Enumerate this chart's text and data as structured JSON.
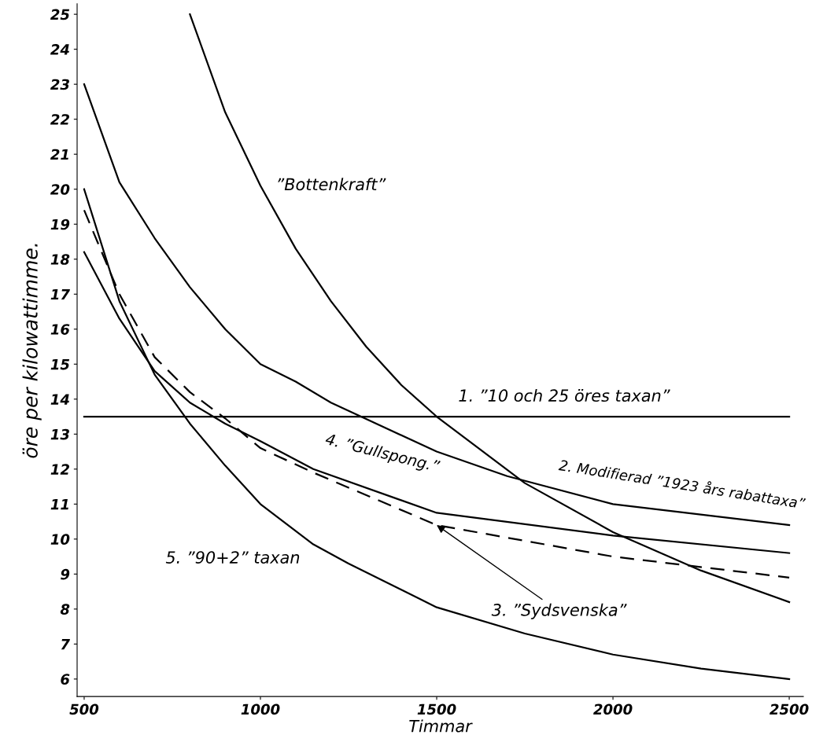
{
  "chart_data": {
    "type": "line",
    "xlabel": "Timmar",
    "ylabel": "öre per kilowattimme.",
    "xlim": [
      480,
      2540
    ],
    "ylim": [
      5.5,
      25.3
    ],
    "xticks": [
      500,
      1000,
      1500,
      2000,
      2500
    ],
    "yticks": [
      6,
      7,
      8,
      9,
      10,
      11,
      12,
      13,
      14,
      15,
      16,
      17,
      18,
      19,
      20,
      21,
      22,
      23,
      24,
      25
    ],
    "grid": false,
    "legend": false,
    "marker": "none",
    "series": [
      {
        "name": "1. ”10 och 25 öres taxan”",
        "color": "#000000",
        "line_style": "solid",
        "x": [
          500,
          2500
        ],
        "values": [
          13.5,
          13.5
        ]
      },
      {
        "name": "2. Modifierad ”1923 års rabattaxa”",
        "color": "#000000",
        "line_style": "solid",
        "x": [
          500,
          600,
          700,
          800,
          900,
          1000,
          1100,
          1200,
          1500,
          1700,
          2000,
          2500
        ],
        "values": [
          23,
          20.2,
          18.6,
          17.2,
          16.0,
          15.0,
          14.5,
          13.9,
          12.5,
          11.8,
          11.0,
          10.4
        ]
      },
      {
        "name": "3. ”Sydsvenska”",
        "color": "#000000",
        "line_style": "dashed",
        "x": [
          500,
          600,
          700,
          800,
          900,
          1000,
          1150,
          1500,
          2000,
          2500
        ],
        "values": [
          19.4,
          17.0,
          15.2,
          14.2,
          13.45,
          12.6,
          11.9,
          10.4,
          9.5,
          8.9
        ]
      },
      {
        "name": "4. ”Gullspong.”",
        "color": "#000000",
        "line_style": "solid",
        "x": [
          500,
          600,
          700,
          800,
          900,
          1000,
          1150,
          1500,
          2000,
          2500
        ],
        "values": [
          18.2,
          16.3,
          14.8,
          13.9,
          13.3,
          12.8,
          12.0,
          10.75,
          10.1,
          9.6
        ]
      },
      {
        "name": "5. ”90+2” taxan",
        "color": "#000000",
        "line_style": "solid",
        "x": [
          500,
          600,
          700,
          800,
          900,
          1000,
          1150,
          1250,
          1500,
          1750,
          2000,
          2250,
          2500
        ],
        "values": [
          20.0,
          16.8,
          14.7,
          13.3,
          12.1,
          11.0,
          9.85,
          9.3,
          8.05,
          7.3,
          6.7,
          6.3,
          6.0
        ]
      },
      {
        "name": "”Bottenkraft”",
        "color": "#000000",
        "line_style": "solid",
        "x": [
          800,
          900,
          1000,
          1100,
          1200,
          1300,
          1400,
          1500,
          1750,
          2000,
          2250,
          2500
        ],
        "values": [
          25,
          22.2,
          20.1,
          18.3,
          16.8,
          15.5,
          14.4,
          13.5,
          11.6,
          10.2,
          9.1,
          8.2
        ]
      }
    ]
  }
}
